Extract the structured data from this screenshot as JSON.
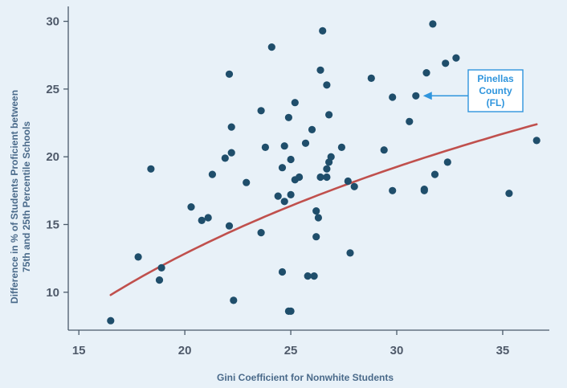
{
  "chart_data": {
    "type": "scatter",
    "xlabel": "Gini Coefficient for Nonwhite Students",
    "ylabel_lines": [
      "Difference in % of Students Proficient between",
      "75th and 25th Percentile Schools"
    ],
    "xlim": [
      14.5,
      37.2
    ],
    "ylim": [
      7.2,
      31.1
    ],
    "x_ticks": [
      15,
      20,
      25,
      30,
      35
    ],
    "y_ticks": [
      10,
      15,
      20,
      25,
      30
    ],
    "grid": false,
    "colors": {
      "background": "#e8f1f8",
      "points": "#1f4e6b",
      "fit_line": "#c0504d",
      "axis": "#4a5a6a",
      "annotation": "#2f95dd"
    },
    "annotation": {
      "lines": [
        "Pinellas",
        "County",
        "(FL)"
      ],
      "target": {
        "x": 30.9,
        "y": 24.5
      }
    },
    "fit_curve": {
      "type": "log",
      "x_start": 16.5,
      "x_end": 36.6,
      "points": [
        [
          16.5,
          9.8
        ],
        [
          20,
          15.4
        ],
        [
          25,
          19.3
        ],
        [
          30,
          21.2
        ],
        [
          36.6,
          22.4
        ]
      ]
    },
    "points": [
      [
        16.5,
        7.9
      ],
      [
        17.8,
        12.6
      ],
      [
        18.4,
        19.1
      ],
      [
        18.8,
        10.9
      ],
      [
        18.9,
        11.8
      ],
      [
        20.3,
        16.3
      ],
      [
        20.8,
        15.3
      ],
      [
        21.1,
        15.5
      ],
      [
        21.3,
        18.7
      ],
      [
        21.9,
        19.9
      ],
      [
        22.1,
        14.9
      ],
      [
        22.1,
        26.1
      ],
      [
        22.2,
        22.2
      ],
      [
        22.2,
        20.3
      ],
      [
        22.3,
        9.4
      ],
      [
        22.9,
        18.1
      ],
      [
        23.6,
        23.4
      ],
      [
        23.6,
        14.4
      ],
      [
        23.8,
        20.7
      ],
      [
        24.1,
        28.1
      ],
      [
        24.4,
        17.1
      ],
      [
        24.6,
        19.2
      ],
      [
        24.6,
        11.5
      ],
      [
        24.7,
        20.8
      ],
      [
        24.7,
        16.7
      ],
      [
        24.9,
        22.9
      ],
      [
        24.9,
        8.6
      ],
      [
        25.0,
        19.8
      ],
      [
        25.0,
        8.6
      ],
      [
        25.0,
        17.2
      ],
      [
        25.2,
        24.0
      ],
      [
        25.2,
        18.3
      ],
      [
        25.4,
        18.5
      ],
      [
        25.7,
        21.0
      ],
      [
        25.8,
        11.2
      ],
      [
        26.0,
        22.0
      ],
      [
        26.1,
        11.2
      ],
      [
        26.2,
        14.1
      ],
      [
        26.2,
        16.0
      ],
      [
        26.3,
        15.5
      ],
      [
        26.4,
        26.4
      ],
      [
        26.4,
        18.5
      ],
      [
        26.5,
        29.3
      ],
      [
        26.7,
        25.3
      ],
      [
        26.7,
        18.5
      ],
      [
        26.7,
        19.1
      ],
      [
        26.8,
        19.6
      ],
      [
        26.8,
        23.1
      ],
      [
        26.9,
        20.0
      ],
      [
        27.4,
        20.7
      ],
      [
        27.7,
        18.2
      ],
      [
        27.8,
        12.9
      ],
      [
        28.0,
        17.8
      ],
      [
        28.8,
        25.8
      ],
      [
        29.4,
        20.5
      ],
      [
        29.8,
        24.4
      ],
      [
        29.8,
        17.5
      ],
      [
        30.6,
        22.6
      ],
      [
        30.9,
        24.5
      ],
      [
        31.3,
        17.6
      ],
      [
        31.3,
        17.5
      ],
      [
        31.4,
        26.2
      ],
      [
        31.7,
        29.8
      ],
      [
        31.8,
        18.7
      ],
      [
        32.3,
        26.9
      ],
      [
        32.4,
        19.6
      ],
      [
        32.8,
        27.3
      ],
      [
        35.3,
        17.3
      ],
      [
        36.6,
        21.2
      ]
    ]
  }
}
